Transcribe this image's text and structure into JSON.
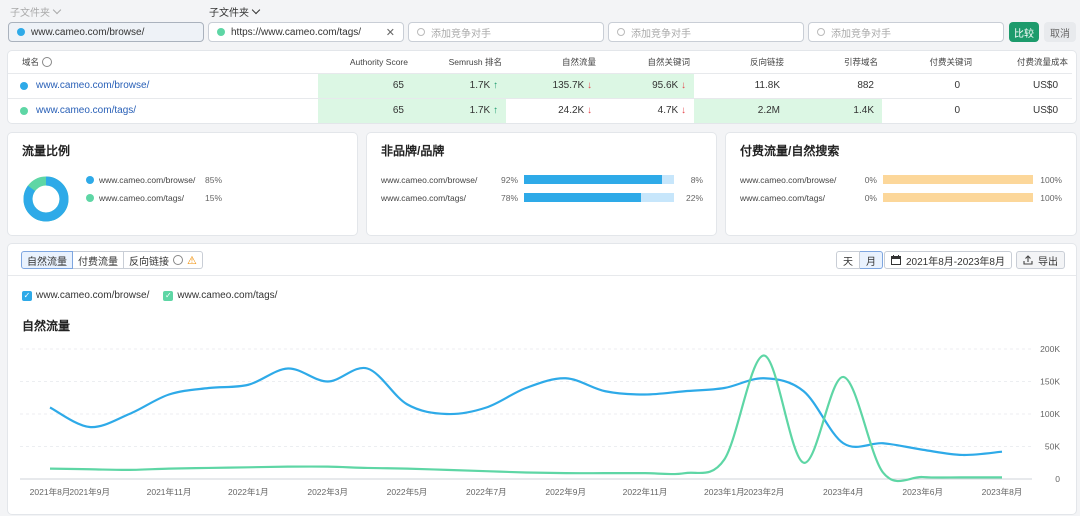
{
  "header": {
    "subfolder_label_1": "子文件夹",
    "subfolder_label_2": "子文件夹",
    "domain1": "www.cameo.com/browse/",
    "domain2": "https://www.cameo.com/tags/",
    "competitor_placeholder": "添加竞争对手",
    "compare_label": "比较",
    "cancel_label": "取消"
  },
  "table": {
    "headers": [
      "域名",
      "Authority Score",
      "Semrush 排名",
      "自然流量",
      "自然关键词",
      "反向链接",
      "引荐域名",
      "付费关键词",
      "付费流量成本"
    ],
    "rows": [
      {
        "domain": "www.cameo.com/browse/",
        "authority": "65",
        "rank": "1.7K",
        "traffic": "135.7K",
        "keywords": "95.6K",
        "backlinks": "11.8K",
        "refdomains": "882",
        "paid_kw": "0",
        "paid_cost": "US$0"
      },
      {
        "domain": "www.cameo.com/tags/",
        "authority": "65",
        "rank": "1.7K",
        "traffic": "24.2K",
        "keywords": "4.7K",
        "backlinks": "2.2M",
        "refdomains": "1.4K",
        "paid_kw": "0",
        "paid_cost": "US$0"
      }
    ]
  },
  "panels": {
    "traffic_share": {
      "title": "流量比例",
      "items": [
        {
          "label": "www.cameo.com/browse/",
          "pct": "85%",
          "value": 85
        },
        {
          "label": "www.cameo.com/tags/",
          "pct": "15%",
          "value": 15
        }
      ]
    },
    "branded": {
      "title": "非品牌/品牌",
      "items": [
        {
          "label": "www.cameo.com/browse/",
          "left_pct": "92%",
          "right_pct": "8%",
          "value": 92
        },
        {
          "label": "www.cameo.com/tags/",
          "left_pct": "78%",
          "right_pct": "22%",
          "value": 78
        }
      ]
    },
    "paid_vs_organic": {
      "title": "付费流量/自然搜索",
      "items": [
        {
          "label": "www.cameo.com/browse/",
          "left_pct": "0%",
          "right_pct": "100%",
          "value": 0
        },
        {
          "label": "www.cameo.com/tags/",
          "left_pct": "0%",
          "right_pct": "100%",
          "value": 0
        }
      ]
    }
  },
  "chart_section": {
    "tabs": [
      "自然流量",
      "付费流量",
      "反向链接"
    ],
    "period_buttons": [
      "天",
      "月"
    ],
    "date_range": "2021年8月-2023年8月",
    "export_label": "导出",
    "legend": [
      "www.cameo.com/browse/",
      "www.cameo.com/tags/"
    ],
    "chart_title": "自然流量"
  },
  "colors": {
    "browse": "#2eaae8",
    "tags": "#5ed6a5",
    "accent_green": "#1d9b6c",
    "highlight": "#dcf7e4",
    "paid_bar": "#fcd79a"
  },
  "chart_data": {
    "type": "line",
    "title": "自然流量",
    "x_tick_labels": [
      "2021年8月",
      "2021年9月",
      "2021年11月",
      "2022年1月",
      "2022年3月",
      "2022年5月",
      "2022年7月",
      "2022年9月",
      "2022年11月",
      "2023年1月",
      "2023年2月",
      "2023年4月",
      "2023年6月",
      "2023年8月"
    ],
    "x_tick_months": [
      0,
      1,
      3,
      5,
      7,
      9,
      11,
      13,
      15,
      17,
      18,
      20,
      22,
      24
    ],
    "y_tick_labels": [
      "0",
      "50K",
      "100K",
      "150K",
      "200K"
    ],
    "ylim": [
      0,
      200000
    ],
    "x_months": [
      0,
      1,
      2,
      3,
      4,
      5,
      6,
      7,
      8,
      9,
      10,
      11,
      12,
      13,
      14,
      15,
      16,
      17,
      18,
      19,
      20,
      21,
      22,
      23,
      24
    ],
    "series": [
      {
        "name": "www.cameo.com/browse/",
        "values": [
          110000,
          80000,
          100000,
          130000,
          140000,
          145000,
          170000,
          150000,
          170000,
          115000,
          100000,
          110000,
          140000,
          155000,
          135000,
          130000,
          135000,
          140000,
          155000,
          135000,
          55000,
          55000,
          45000,
          37000,
          42000
        ]
      },
      {
        "name": "www.cameo.com/tags/",
        "values": [
          16000,
          15000,
          14000,
          16000,
          17000,
          18000,
          19000,
          19000,
          17000,
          16000,
          14000,
          12000,
          10000,
          9000,
          9000,
          9000,
          9000,
          30000,
          190000,
          25000,
          157000,
          10000,
          3000,
          2500,
          2500
        ]
      }
    ]
  }
}
